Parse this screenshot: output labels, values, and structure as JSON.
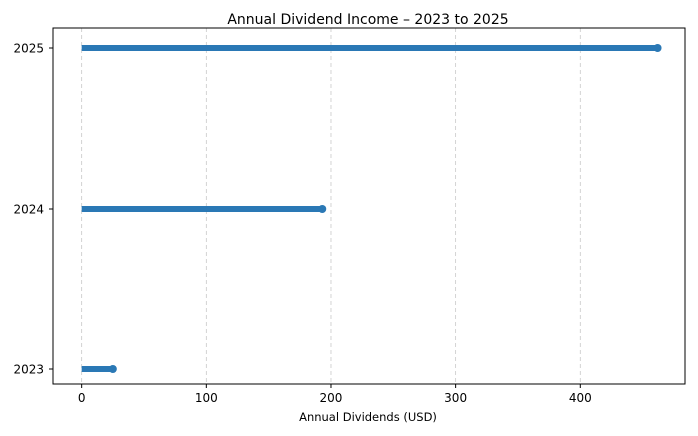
{
  "chart_data": {
    "type": "lollipop",
    "title": "Annual Dividend Income – 2023 to 2025",
    "xlabel": "Annual Dividends (USD)",
    "ylabel": "",
    "categories": [
      "2023",
      "2024",
      "2025"
    ],
    "values": [
      25,
      193,
      462
    ],
    "xlim": [
      -23,
      484
    ],
    "xticks": [
      0,
      100,
      200,
      300,
      400
    ],
    "grid": "x-dashed",
    "color": "#2a78b5",
    "legend": "none"
  }
}
